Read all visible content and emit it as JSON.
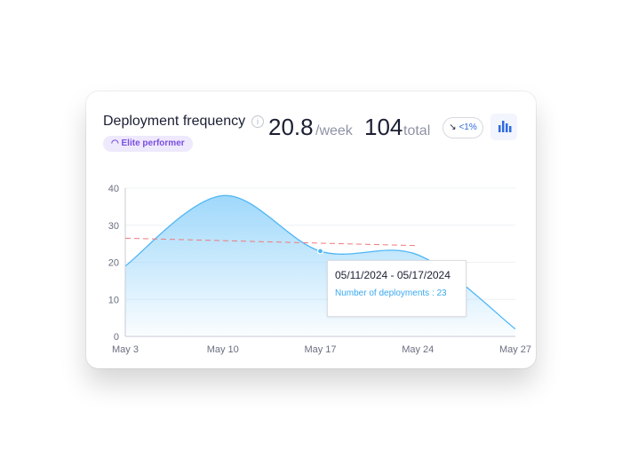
{
  "header": {
    "title": "Deployment frequency",
    "info_icon": "info-icon",
    "badge": "Elite performer",
    "badge_icon": "gauge-icon",
    "rate_value": "20.8",
    "rate_unit": "/week",
    "total_value": "104",
    "total_unit": "total",
    "change": "<1%",
    "change_icon": "arrow-down-right-icon",
    "chart_toggle_icon": "bar-chart-icon"
  },
  "colors": {
    "line": "#4db6f5",
    "fill": "#9fd8fb",
    "trend": "#f07a7a",
    "badge_text": "#7a4fe0",
    "accent": "#2d6be0"
  },
  "tooltip": {
    "range": "05/11/2024 - 05/17/2024",
    "label": "Number of deployments : 23"
  },
  "chart_data": {
    "type": "area",
    "categories": [
      "May 3",
      "May 10",
      "May 17",
      "May 24",
      "May 27"
    ],
    "values": [
      19,
      38,
      23,
      22,
      2
    ],
    "trend": {
      "start": 26.5,
      "end": 24.5,
      "from": "May 3",
      "to": "May 24"
    },
    "ylim": [
      0,
      40
    ],
    "yticks": [
      0,
      10,
      20,
      30,
      40
    ],
    "grid": true,
    "highlighted": "May 17"
  }
}
